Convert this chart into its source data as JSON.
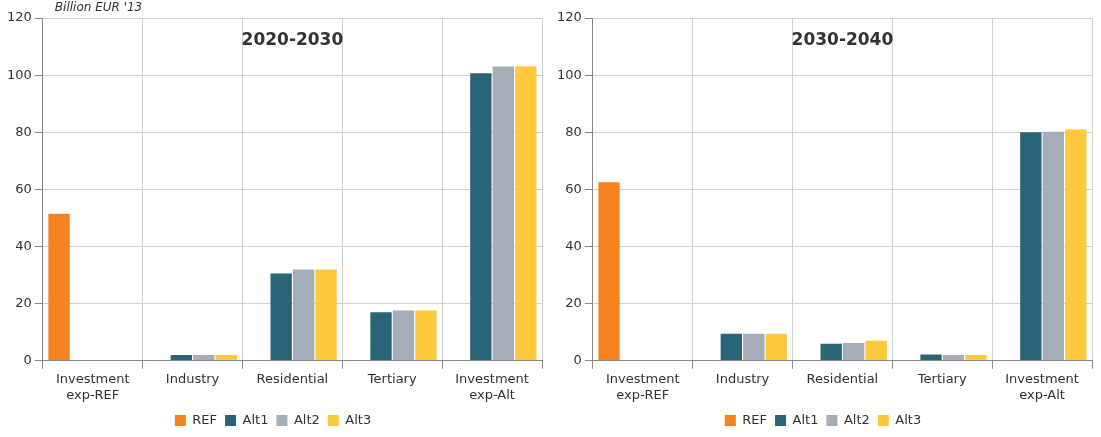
{
  "chart_data": [
    {
      "type": "bar",
      "title": "2020-2030",
      "ylabel": "Billion EUR '13",
      "categories": [
        "Investment exp-REF",
        "Industry",
        "Residential",
        "Tertiary",
        "Investment exp-Alt"
      ],
      "series": [
        {
          "name": "REF",
          "color": "#f58220",
          "values": [
            51.5,
            null,
            null,
            null,
            null
          ]
        },
        {
          "name": "Alt1",
          "color": "#2a6478",
          "values": [
            null,
            2,
            30.6,
            17,
            100.7
          ]
        },
        {
          "name": "Alt2",
          "color": "#a5adb8",
          "values": [
            null,
            2,
            32,
            17.6,
            103
          ]
        },
        {
          "name": "Alt3",
          "color": "#ffc83d",
          "values": [
            null,
            2,
            32,
            17.6,
            103
          ]
        }
      ],
      "ylim": [
        0,
        120
      ],
      "yticks": [
        0,
        20,
        40,
        60,
        80,
        100,
        120
      ],
      "grid": true,
      "legend": "bottom"
    },
    {
      "type": "bar",
      "title": "2030-2040",
      "categories": [
        "Investment exp-REF",
        "Industry",
        "Residential",
        "Tertiary",
        "Investment exp-Alt"
      ],
      "series": [
        {
          "name": "REF",
          "color": "#f58220",
          "values": [
            62.5,
            null,
            null,
            null,
            null
          ]
        },
        {
          "name": "Alt1",
          "color": "#2a6478",
          "values": [
            null,
            9.5,
            6,
            2.2,
            80
          ]
        },
        {
          "name": "Alt2",
          "color": "#a5adb8",
          "values": [
            null,
            9.5,
            6.2,
            2,
            80.2
          ]
        },
        {
          "name": "Alt3",
          "color": "#ffc83d",
          "values": [
            null,
            9.5,
            7,
            2,
            81
          ]
        }
      ],
      "ylim": [
        0,
        120
      ],
      "yticks": [
        0,
        20,
        40,
        60,
        80,
        100,
        120
      ],
      "grid": true,
      "legend": "bottom"
    }
  ]
}
